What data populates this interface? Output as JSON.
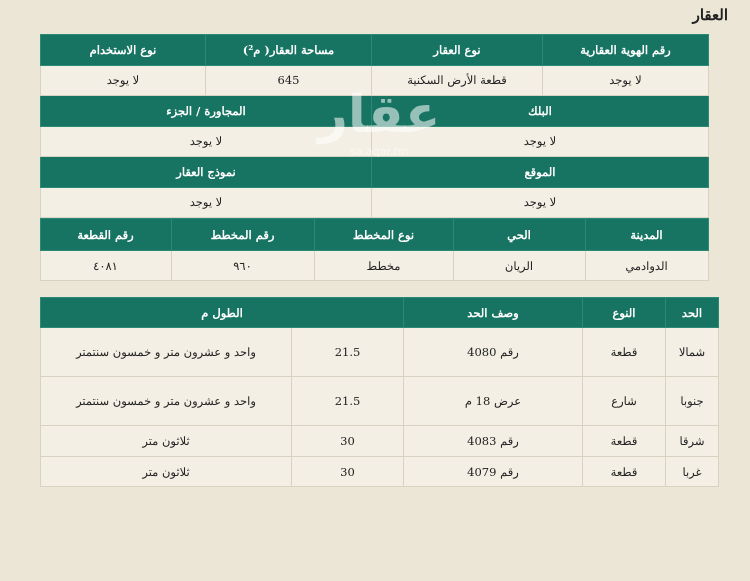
{
  "title": "العقار",
  "watermark": {
    "logo": "عقار",
    "url": "sa.aqar.fm"
  },
  "colors": {
    "header_green": "#177462",
    "background": "#ece6d6"
  },
  "property": {
    "row1_headers": [
      "رقم الهوية العقارية",
      "نوع العقار",
      "مساحة العقار( م²)",
      "نوع الاستخدام"
    ],
    "row1_values": [
      "لا يوجد",
      "قطعة الأرض السكنية",
      "645",
      "لا يوجد"
    ],
    "row2_headers": [
      "البلك",
      "المجاورة / الجزء"
    ],
    "row2_values": [
      "لا يوجد",
      "لا يوجد"
    ],
    "row3_headers": [
      "الموقع",
      "نموذج العقار"
    ],
    "row3_values": [
      "لا يوجد",
      "لا يوجد"
    ],
    "row4_headers": [
      "المدينة",
      "الحي",
      "نوع المخطط",
      "رقم المخطط",
      "رقم القطعة"
    ],
    "row4_values": [
      "الدوادمي",
      "الريان",
      "مخطط",
      "٩٦٠",
      "٤٠٨١"
    ]
  },
  "boundaries": {
    "headers": [
      "الحد",
      "النوع",
      "وصف الحد",
      "الطول م"
    ],
    "rows": [
      {
        "side": "شمالا",
        "type": "قطعة",
        "desc": "رقم 4080",
        "length": "21.5",
        "length_text": "واحد و عشرون متر و خمسون سنتمتر"
      },
      {
        "side": "جنوبا",
        "type": "شارع",
        "desc": "عرض 18 م",
        "length": "21.5",
        "length_text": "واحد و عشرون متر و خمسون سنتمتر"
      },
      {
        "side": "شرقا",
        "type": "قطعة",
        "desc": "رقم 4083",
        "length": "30",
        "length_text": "ثلاثون متر"
      },
      {
        "side": "غربا",
        "type": "قطعة",
        "desc": "رقم 4079",
        "length": "30",
        "length_text": "ثلاثون متر"
      }
    ]
  }
}
